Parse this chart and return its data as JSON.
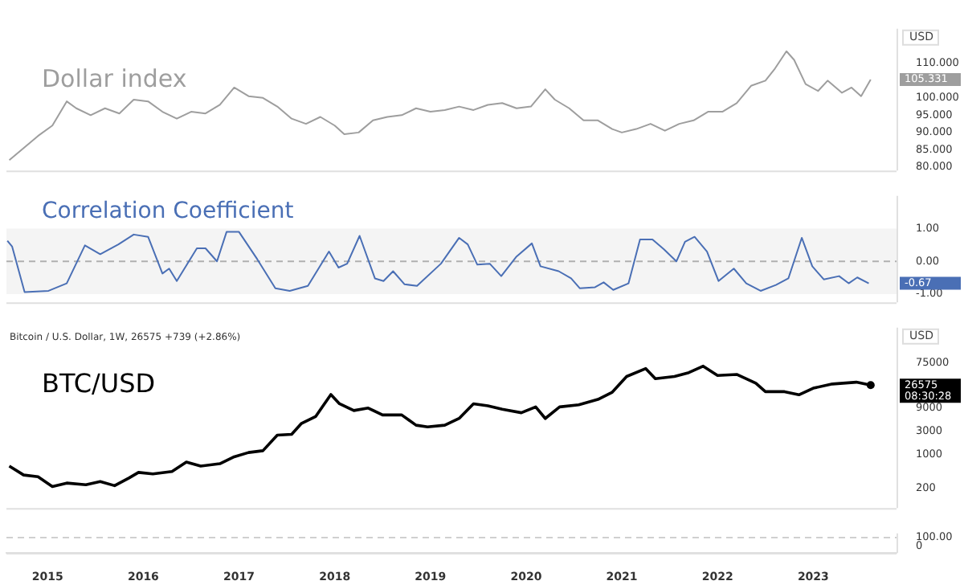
{
  "chart_data": [
    {
      "type": "line",
      "title": "Dollar index",
      "ylabel": "USD",
      "xlim": [
        2014.57,
        2023.87
      ],
      "ylim": [
        79,
        120
      ],
      "yticks": [
        {
          "value": 80,
          "label": "80.000"
        },
        {
          "value": 85,
          "label": "85.000"
        },
        {
          "value": 90,
          "label": "90.000"
        },
        {
          "value": 95,
          "label": "95.000"
        },
        {
          "value": 100,
          "label": "100.000"
        },
        {
          "value": 110,
          "label": "110.000"
        }
      ],
      "tick_labels": "y",
      "x": [
        2014.6,
        2014.75,
        2014.9,
        2015.05,
        2015.2,
        2015.3,
        2015.45,
        2015.6,
        2015.75,
        2015.9,
        2016.05,
        2016.2,
        2016.35,
        2016.5,
        2016.65,
        2016.8,
        2016.95,
        2017.1,
        2017.25,
        2017.4,
        2017.55,
        2017.7,
        2017.85,
        2018.0,
        2018.1,
        2018.25,
        2018.4,
        2018.55,
        2018.7,
        2018.85,
        2019.0,
        2019.15,
        2019.3,
        2019.45,
        2019.6,
        2019.75,
        2019.9,
        2020.05,
        2020.2,
        2020.3,
        2020.45,
        2020.6,
        2020.75,
        2020.9,
        2021.0,
        2021.15,
        2021.3,
        2021.45,
        2021.6,
        2021.75,
        2021.9,
        2022.05,
        2022.2,
        2022.35,
        2022.5,
        2022.6,
        2022.72,
        2022.8,
        2022.92,
        2023.05,
        2023.15,
        2023.3,
        2023.4,
        2023.5,
        2023.6
      ],
      "series": [
        {
          "color": "#9e9e9e",
          "values": [
            82,
            85.5,
            89,
            92,
            99,
            97,
            95,
            97,
            95.5,
            99.5,
            99,
            96,
            94,
            96,
            95.5,
            98,
            103,
            100.5,
            100,
            97.5,
            94,
            92.5,
            94.5,
            92,
            89.5,
            90,
            93.5,
            94.5,
            95,
            97,
            96,
            96.5,
            97.5,
            96.5,
            98,
            98.5,
            97,
            97.5,
            102.5,
            99.5,
            97,
            93.5,
            93.5,
            91,
            90,
            91,
            92.5,
            90.5,
            92.5,
            93.5,
            96,
            96,
            98.5,
            103.5,
            105,
            108.5,
            113.5,
            111,
            104,
            102,
            105,
            101.5,
            103,
            100.5,
            105.3
          ]
        }
      ],
      "annotations": [
        "105.331"
      ]
    },
    {
      "type": "line",
      "title": "Correlation Coefficient",
      "xlim": [
        2014.57,
        2023.87
      ],
      "ylim": [
        -1.25,
        2.0
      ],
      "yticks": [
        {
          "value": 1,
          "label": "1.00"
        },
        {
          "value": 0,
          "label": "0.00"
        },
        {
          "value": -1,
          "label": "-1.00"
        }
      ],
      "tick_labels": "y",
      "bands": [
        {
          "axis": "y",
          "from": -1,
          "to": 1,
          "color": "#f4f4f4"
        }
      ],
      "ref_lines": [
        {
          "axis": "y",
          "value": 0,
          "color": "#b0b0b0",
          "line_style": "dashed"
        }
      ],
      "x": [
        2014.58,
        2014.63,
        2014.76,
        2015.01,
        2015.2,
        2015.39,
        2015.55,
        2015.74,
        2015.9,
        2016.05,
        2016.2,
        2016.27,
        2016.35,
        2016.56,
        2016.65,
        2016.77,
        2016.87,
        2017.0,
        2017.19,
        2017.38,
        2017.53,
        2017.72,
        2017.94,
        2018.04,
        2018.13,
        2018.26,
        2018.42,
        2018.51,
        2018.61,
        2018.73,
        2018.86,
        2019.11,
        2019.3,
        2019.39,
        2019.49,
        2019.62,
        2019.74,
        2019.9,
        2020.06,
        2020.15,
        2020.34,
        2020.47,
        2020.56,
        2020.72,
        2020.81,
        2020.91,
        2021.07,
        2021.19,
        2021.32,
        2021.44,
        2021.57,
        2021.66,
        2021.76,
        2021.89,
        2022.01,
        2022.17,
        2022.3,
        2022.45,
        2022.61,
        2022.74,
        2022.88,
        2022.99,
        2023.11,
        2023.27,
        2023.37,
        2023.46,
        2023.58
      ],
      "series": [
        {
          "color": "#4a6fb5",
          "values": [
            0.63,
            0.45,
            -0.94,
            -0.9,
            -0.67,
            0.49,
            0.22,
            0.52,
            0.82,
            0.75,
            -0.37,
            -0.22,
            -0.6,
            0.4,
            0.4,
            0,
            0.9,
            0.9,
            0.07,
            -0.82,
            -0.9,
            -0.75,
            0.3,
            -0.19,
            -0.07,
            0.78,
            -0.52,
            -0.6,
            -0.3,
            -0.7,
            -0.75,
            -0.07,
            0.72,
            0.52,
            -0.1,
            -0.07,
            -0.45,
            0.15,
            0.55,
            -0.15,
            -0.3,
            -0.52,
            -0.82,
            -0.79,
            -0.64,
            -0.87,
            -0.67,
            0.67,
            0.67,
            0.37,
            0,
            0.6,
            0.75,
            0.3,
            -0.6,
            -0.22,
            -0.67,
            -0.9,
            -0.72,
            -0.52,
            0.72,
            -0.15,
            -0.55,
            -0.45,
            -0.67,
            -0.49,
            -0.67
          ]
        }
      ],
      "annotations": [
        "-0.67"
      ]
    },
    {
      "type": "line",
      "title": "BTC/USD",
      "ylabel": "USD",
      "log": true,
      "xlim": [
        2014.57,
        2023.87
      ],
      "ylim": [
        80,
        400000
      ],
      "yticks": [
        200,
        1000,
        3000,
        9000,
        75000
      ],
      "tick_labels": "y",
      "x": [
        2014.6,
        2014.75,
        2014.9,
        2015.05,
        2015.2,
        2015.4,
        2015.55,
        2015.7,
        2015.85,
        2015.95,
        2016.1,
        2016.3,
        2016.45,
        2016.6,
        2016.8,
        2016.95,
        2017.1,
        2017.25,
        2017.4,
        2017.55,
        2017.65,
        2017.8,
        2017.96,
        2018.05,
        2018.2,
        2018.35,
        2018.5,
        2018.7,
        2018.85,
        2018.97,
        2019.15,
        2019.3,
        2019.45,
        2019.6,
        2019.75,
        2019.95,
        2020.1,
        2020.2,
        2020.35,
        2020.55,
        2020.75,
        2020.9,
        2021.05,
        2021.25,
        2021.35,
        2021.55,
        2021.7,
        2021.85,
        2022.0,
        2022.2,
        2022.4,
        2022.5,
        2022.7,
        2022.85,
        2023.0,
        2023.2,
        2023.45,
        2023.6
      ],
      "series": [
        {
          "color": "#000000",
          "values": [
            580,
            380,
            350,
            220,
            260,
            240,
            280,
            230,
            330,
            430,
            400,
            450,
            700,
            580,
            650,
            900,
            1100,
            1200,
            2500,
            2600,
            4300,
            6000,
            17000,
            11000,
            8000,
            9000,
            6500,
            6500,
            4000,
            3700,
            4000,
            5500,
            11000,
            10000,
            8500,
            7200,
            9500,
            5500,
            9500,
            10500,
            13500,
            19000,
            40000,
            58000,
            36000,
            40000,
            48000,
            65000,
            42000,
            44000,
            29000,
            19500,
            19500,
            16800,
            23000,
            28000,
            30500,
            26575
          ]
        }
      ],
      "annotations": [
        "Bitcoin / U.S. Dollar, 1W, 26575 +739 (+2.86%)",
        "26575",
        "08:30:28"
      ]
    },
    {
      "type": "line",
      "xlim": [
        2014.57,
        2023.87
      ],
      "ylim": [
        -80,
        150
      ],
      "xticks": [
        2015,
        2016,
        2017,
        2018,
        2019,
        2020,
        2021,
        2022,
        2023
      ],
      "yticks": [
        {
          "value": 100,
          "label": "100.00"
        },
        0
      ],
      "ref_lines": [
        {
          "axis": "y",
          "value": 100,
          "color": "#d0d0d0",
          "line_style": "dashed"
        }
      ]
    }
  ]
}
